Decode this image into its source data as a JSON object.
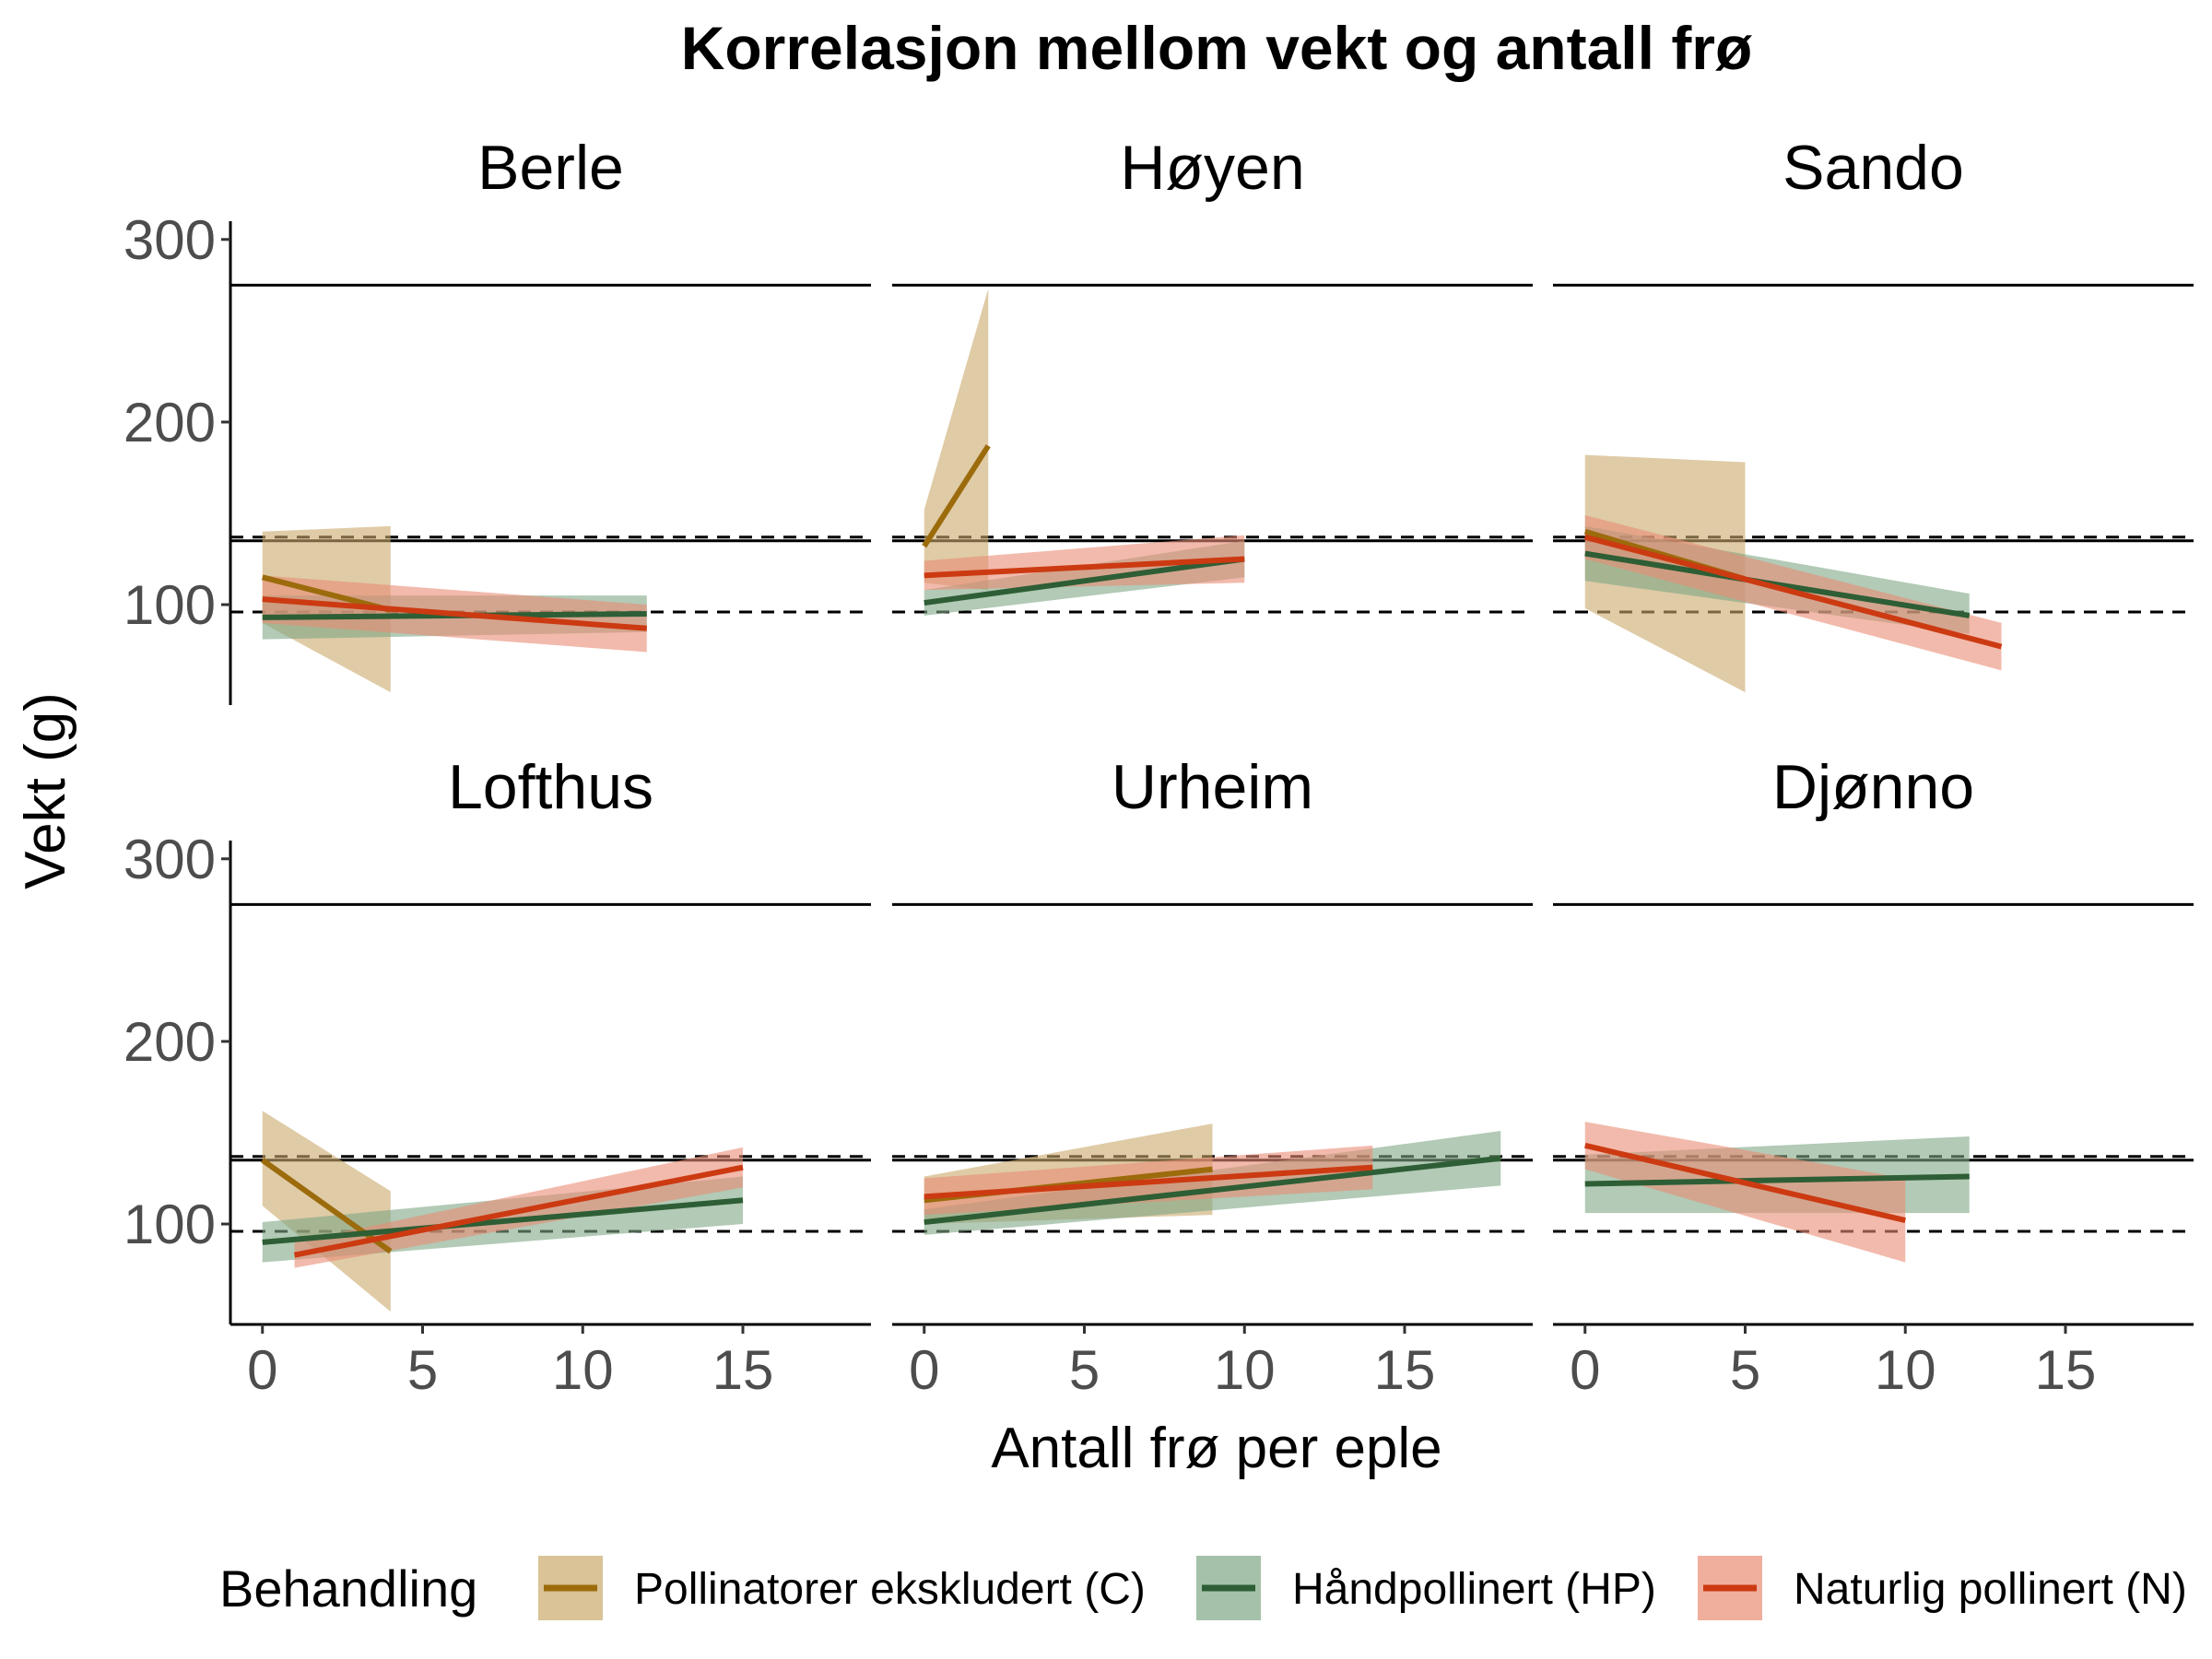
{
  "chart_data": {
    "type": "line",
    "title": "Korrelasjon mellom vekt og antall frø",
    "xlabel": "Antall frø per eple",
    "ylabel": "Vekt (g)",
    "xlim": [
      -1,
      19
    ],
    "ylim": [
      45,
      310
    ],
    "x_ticks": [
      0,
      5,
      10,
      15
    ],
    "y_ticks": [
      100,
      200,
      300
    ],
    "reference_lines": {
      "solid": [
        275,
        135
      ],
      "dashed": [
        137,
        96
      ]
    },
    "legend": {
      "title": "Behandling",
      "position": "bottom",
      "entries": [
        {
          "key": "C",
          "label": "Pollinatorer ekskludert (C)",
          "color": "#9C6B0C",
          "fill": "#C9A96B"
        },
        {
          "key": "HP",
          "label": "Håndpollinert (HP)",
          "color": "#2E5E35",
          "fill": "#7FA685"
        },
        {
          "key": "N",
          "label": "Naturlig pollinert (N)",
          "color": "#CC3A12",
          "fill": "#EA8C74"
        }
      ]
    },
    "panels": [
      {
        "name": "Berle",
        "series": [
          {
            "key": "C",
            "x": [
              0,
              4
            ],
            "y": [
              115,
              97
            ],
            "lo": [
              90,
              52
            ],
            "hi": [
              140,
              143
            ]
          },
          {
            "key": "HP",
            "x": [
              0,
              12
            ],
            "y": [
              93,
              95
            ],
            "lo": [
              81,
              85
            ],
            "hi": [
              105,
              105
            ]
          },
          {
            "key": "N",
            "x": [
              0,
              12
            ],
            "y": [
              103,
              87
            ],
            "lo": [
              90,
              74
            ],
            "hi": [
              116,
              100
            ]
          }
        ]
      },
      {
        "name": "Høyen",
        "series": [
          {
            "key": "C",
            "x": [
              0,
              2
            ],
            "y": [
              132,
              187
            ],
            "lo": [
              112,
              108
            ],
            "hi": [
              152,
              273
            ]
          },
          {
            "key": "HP",
            "x": [
              0,
              10
            ],
            "y": [
              101,
              125
            ],
            "lo": [
              94,
              115
            ],
            "hi": [
              108,
              135
            ]
          },
          {
            "key": "N",
            "x": [
              0,
              10
            ],
            "y": [
              116,
              125
            ],
            "lo": [
              108,
              112
            ],
            "hi": [
              124,
              138
            ]
          }
        ]
      },
      {
        "name": "Sando",
        "series": [
          {
            "key": "C",
            "x": [
              0,
              5
            ],
            "y": [
              140,
              114
            ],
            "lo": [
              98,
              52
            ],
            "hi": [
              182,
              178
            ]
          },
          {
            "key": "HP",
            "x": [
              0,
              12
            ],
            "y": [
              128,
              94
            ],
            "lo": [
              113,
              84
            ],
            "hi": [
              143,
              106
            ]
          },
          {
            "key": "N",
            "x": [
              0,
              13
            ],
            "y": [
              137,
              77
            ],
            "lo": [
              125,
              64
            ],
            "hi": [
              149,
              90
            ]
          }
        ]
      },
      {
        "name": "Lofthus",
        "series": [
          {
            "key": "C",
            "x": [
              0,
              4
            ],
            "y": [
              135,
              85
            ],
            "lo": [
              110,
              52
            ],
            "hi": [
              162,
              118
            ]
          },
          {
            "key": "HP",
            "x": [
              0,
              15
            ],
            "y": [
              90,
              113
            ],
            "lo": [
              79,
              100
            ],
            "hi": [
              101,
              126
            ]
          },
          {
            "key": "N",
            "x": [
              1,
              15
            ],
            "y": [
              83,
              131
            ],
            "lo": [
              76,
              120
            ],
            "hi": [
              90,
              142
            ]
          }
        ]
      },
      {
        "name": "Urheim",
        "series": [
          {
            "key": "C",
            "x": [
              0,
              9
            ],
            "y": [
              113,
              130
            ],
            "lo": [
              100,
              105
            ],
            "hi": [
              126,
              155
            ]
          },
          {
            "key": "HP",
            "x": [
              0,
              18
            ],
            "y": [
              101,
              136
            ],
            "lo": [
              94,
              121
            ],
            "hi": [
              108,
              151
            ]
          },
          {
            "key": "N",
            "x": [
              0,
              14
            ],
            "y": [
              115,
              131
            ],
            "lo": [
              105,
              119
            ],
            "hi": [
              125,
              143
            ]
          }
        ]
      },
      {
        "name": "Djønno",
        "series": [
          {
            "key": "HP",
            "x": [
              0,
              12
            ],
            "y": [
              122,
              126
            ],
            "lo": [
              106,
              106
            ],
            "hi": [
              138,
              148
            ]
          },
          {
            "key": "N",
            "x": [
              0,
              10
            ],
            "y": [
              143,
              102
            ],
            "lo": [
              130,
              79
            ],
            "hi": [
              156,
              125
            ]
          }
        ]
      }
    ]
  }
}
